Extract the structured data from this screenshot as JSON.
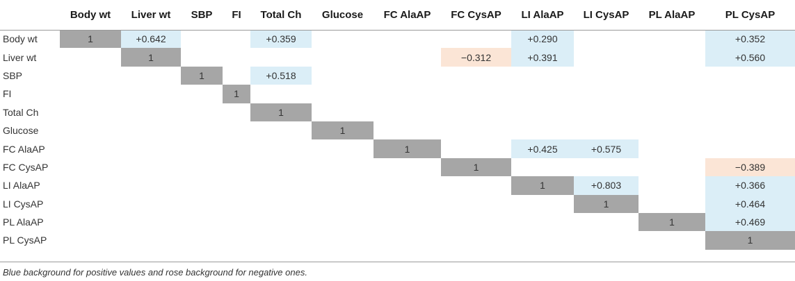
{
  "table": {
    "columns": [
      "",
      "Body wt",
      "Liver wt",
      "SBP",
      "FI",
      "Total Ch",
      "Glucose",
      "FC AlaAP",
      "FC CysAP",
      "LI AlaAP",
      "LI CysAP",
      "PL AlaAP",
      "PL CysAP"
    ],
    "rows": [
      {
        "label": "Body wt",
        "cells": [
          "1",
          "+0.642",
          "",
          "",
          "+0.359",
          "",
          "",
          "",
          "+0.290",
          "",
          "",
          "+0.352"
        ]
      },
      {
        "label": "Liver wt",
        "cells": [
          "",
          "1",
          "",
          "",
          "",
          "",
          "",
          "−0.312",
          "+0.391",
          "",
          "",
          "+0.560"
        ]
      },
      {
        "label": "SBP",
        "cells": [
          "",
          "",
          "1",
          "",
          "+0.518",
          "",
          "",
          "",
          "",
          "",
          "",
          ""
        ]
      },
      {
        "label": "FI",
        "cells": [
          "",
          "",
          "",
          "1",
          "",
          "",
          "",
          "",
          "",
          "",
          "",
          ""
        ]
      },
      {
        "label": "Total Ch",
        "cells": [
          "",
          "",
          "",
          "",
          "1",
          "",
          "",
          "",
          "",
          "",
          "",
          ""
        ]
      },
      {
        "label": "Glucose",
        "cells": [
          "",
          "",
          "",
          "",
          "",
          "1",
          "",
          "",
          "",
          "",
          "",
          ""
        ]
      },
      {
        "label": "FC AlaAP",
        "cells": [
          "",
          "",
          "",
          "",
          "",
          "",
          "1",
          "",
          "+0.425",
          "+0.575",
          "",
          ""
        ]
      },
      {
        "label": "FC CysAP",
        "cells": [
          "",
          "",
          "",
          "",
          "",
          "",
          "",
          "1",
          "",
          "",
          "",
          "−0.389"
        ]
      },
      {
        "label": "LI AlaAP",
        "cells": [
          "",
          "",
          "",
          "",
          "",
          "",
          "",
          "",
          "1",
          "+0.803",
          "",
          "+0.366"
        ]
      },
      {
        "label": "LI CysAP",
        "cells": [
          "",
          "",
          "",
          "",
          "",
          "",
          "",
          "",
          "",
          "1",
          "",
          "+0.464"
        ]
      },
      {
        "label": "PL AlaAP",
        "cells": [
          "",
          "",
          "",
          "",
          "",
          "",
          "",
          "",
          "",
          "",
          "1",
          "+0.469"
        ]
      },
      {
        "label": "PL CysAP",
        "cells": [
          "",
          "",
          "",
          "",
          "",
          "",
          "",
          "",
          "",
          "",
          "",
          "1"
        ]
      }
    ]
  },
  "footnote": "Blue background for positive values and rose background for negative ones.",
  "colors": {
    "positive": "#dbeef7",
    "negative": "#fbe5d6",
    "diagonal": "#a6a6a6"
  }
}
